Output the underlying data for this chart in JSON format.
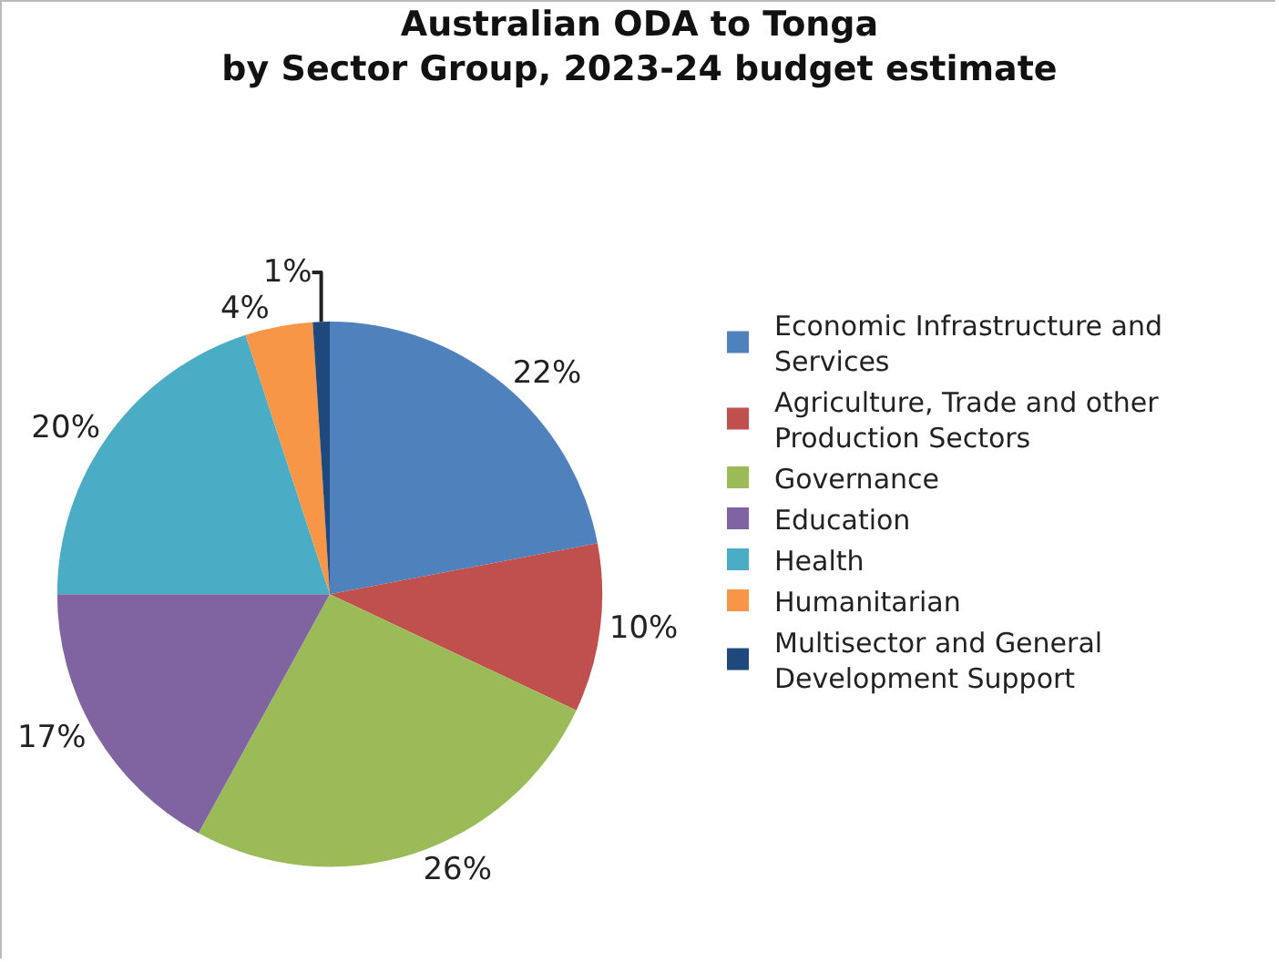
{
  "chart_data": {
    "type": "pie",
    "title": "Australian ODA to Tonga\nby Sector Group, 2023-24 budget estimate",
    "categories": [
      "Economic Infrastructure and Services",
      "Agriculture, Trade and other Production Sectors",
      "Governance",
      "Education",
      "Health",
      "Humanitarian",
      "Multisector and General Development Support"
    ],
    "values": [
      22,
      10,
      26,
      17,
      20,
      4,
      1
    ],
    "value_labels": [
      "22%",
      "10%",
      "26%",
      "17%",
      "20%",
      "4%",
      "1%"
    ],
    "colors": [
      "#4f81bd",
      "#c0504d",
      "#9bbb59",
      "#8064a2",
      "#4bacc6",
      "#f79646",
      "#1f497d"
    ],
    "legend": "right"
  }
}
